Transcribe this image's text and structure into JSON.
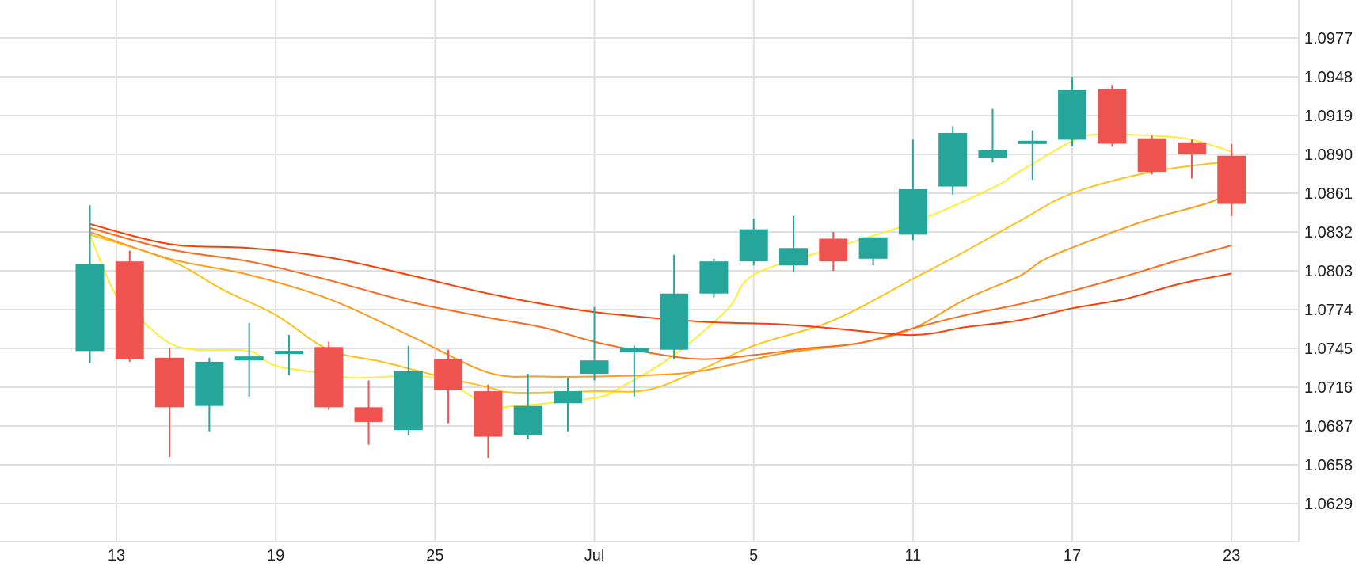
{
  "colors": {
    "up": "#26a69a",
    "down": "#ef5350",
    "grid": "#e0e0e0",
    "axis_text": "#222222",
    "ma_colors": [
      "#ffee33",
      "#ffc21a",
      "#ff9a1a",
      "#ff6a1a",
      "#ff3d00"
    ]
  },
  "chart_data": {
    "type": "candlestick",
    "grid": true,
    "ylim": [
      1.0603,
      1.1007
    ],
    "y_ticks": [
      "1.0977",
      "1.0948",
      "1.0919",
      "1.0890",
      "1.0861",
      "1.0832",
      "1.0803",
      "1.0774",
      "1.0745",
      "1.0716",
      "1.0687",
      "1.0658",
      "1.0629"
    ],
    "x_ticks": [
      {
        "label": "13",
        "day": 13
      },
      {
        "label": "19",
        "day": 19
      },
      {
        "label": "25",
        "day": 25
      },
      {
        "label": "Jul",
        "day": 31
      },
      {
        "label": "5",
        "day": 37
      },
      {
        "label": "11",
        "day": 43
      },
      {
        "label": "17",
        "day": 49
      },
      {
        "label": "23",
        "day": 55
      }
    ],
    "candles": [
      {
        "day": 12,
        "open": 1.0743,
        "high": 1.0852,
        "low": 1.0734,
        "close": 1.0808
      },
      {
        "day": 13.5,
        "open": 1.081,
        "high": 1.0818,
        "low": 1.0735,
        "close": 1.0737
      },
      {
        "day": 15,
        "open": 1.0738,
        "high": 1.0745,
        "low": 1.0664,
        "close": 1.0701
      },
      {
        "day": 16.5,
        "open": 1.0702,
        "high": 1.0738,
        "low": 1.0683,
        "close": 1.0735
      },
      {
        "day": 18,
        "open": 1.0736,
        "high": 1.0764,
        "low": 1.0709,
        "close": 1.0739
      },
      {
        "day": 19.5,
        "open": 1.0741,
        "high": 1.0755,
        "low": 1.0725,
        "close": 1.0743
      },
      {
        "day": 21,
        "open": 1.0746,
        "high": 1.075,
        "low": 1.0699,
        "close": 1.0701
      },
      {
        "day": 22.5,
        "open": 1.0701,
        "high": 1.0721,
        "low": 1.0673,
        "close": 1.069
      },
      {
        "day": 24,
        "open": 1.0684,
        "high": 1.0747,
        "low": 1.068,
        "close": 1.0728
      },
      {
        "day": 25.5,
        "open": 1.0737,
        "high": 1.0744,
        "low": 1.0689,
        "close": 1.0714
      },
      {
        "day": 27,
        "open": 1.0713,
        "high": 1.0718,
        "low": 1.0663,
        "close": 1.0679
      },
      {
        "day": 28.5,
        "open": 1.068,
        "high": 1.0726,
        "low": 1.0677,
        "close": 1.0702
      },
      {
        "day": 30,
        "open": 1.0704,
        "high": 1.0723,
        "low": 1.0683,
        "close": 1.0713
      },
      {
        "day": 31,
        "open": 1.0726,
        "high": 1.0776,
        "low": 1.0721,
        "close": 1.0736
      },
      {
        "day": 32.5,
        "open": 1.0742,
        "high": 1.0747,
        "low": 1.0709,
        "close": 1.0745
      },
      {
        "day": 34,
        "open": 1.0744,
        "high": 1.0815,
        "low": 1.0737,
        "close": 1.0786
      },
      {
        "day": 35.5,
        "open": 1.0786,
        "high": 1.0812,
        "low": 1.0783,
        "close": 1.081
      },
      {
        "day": 37,
        "open": 1.081,
        "high": 1.0842,
        "low": 1.0807,
        "close": 1.0834
      },
      {
        "day": 38.5,
        "open": 1.0807,
        "high": 1.0844,
        "low": 1.0802,
        "close": 1.082
      },
      {
        "day": 40,
        "open": 1.0827,
        "high": 1.0832,
        "low": 1.0803,
        "close": 1.081
      },
      {
        "day": 41.5,
        "open": 1.0812,
        "high": 1.0828,
        "low": 1.0807,
        "close": 1.0828
      },
      {
        "day": 43,
        "open": 1.083,
        "high": 1.0901,
        "low": 1.0826,
        "close": 1.0864
      },
      {
        "day": 44.5,
        "open": 1.0866,
        "high": 1.0911,
        "low": 1.086,
        "close": 1.0906
      },
      {
        "day": 46,
        "open": 1.0887,
        "high": 1.0924,
        "low": 1.0884,
        "close": 1.0893
      },
      {
        "day": 47.5,
        "open": 1.0898,
        "high": 1.0908,
        "low": 1.0871,
        "close": 1.09
      },
      {
        "day": 49,
        "open": 1.0901,
        "high": 1.0948,
        "low": 1.0896,
        "close": 1.0938
      },
      {
        "day": 50.5,
        "open": 1.0939,
        "high": 1.0942,
        "low": 1.0896,
        "close": 1.0898
      },
      {
        "day": 52,
        "open": 1.0902,
        "high": 1.0904,
        "low": 1.0875,
        "close": 1.0877
      },
      {
        "day": 53.5,
        "open": 1.0899,
        "high": 1.0901,
        "low": 1.0872,
        "close": 1.089
      },
      {
        "day": 55,
        "open": 1.0889,
        "high": 1.0898,
        "low": 1.0844,
        "close": 1.0853
      }
    ],
    "moving_averages": [
      {
        "day": [
          12,
          13,
          14,
          15,
          16,
          18,
          19,
          21,
          22,
          25,
          27,
          28,
          31,
          32,
          34,
          36,
          37,
          40,
          43,
          46,
          47,
          49,
          50,
          52,
          53.5,
          55
        ],
        "value": [
          1.083,
          1.0784,
          1.0765,
          1.0749,
          1.0744,
          1.0743,
          1.0732,
          1.0726,
          1.0723,
          1.0723,
          1.0702,
          1.0702,
          1.0708,
          1.0716,
          1.074,
          1.0774,
          1.08,
          1.082,
          1.0839,
          1.0865,
          1.0877,
          1.09,
          1.0905,
          1.0904,
          1.0901,
          1.0892
        ]
      },
      {
        "day": [
          12,
          15,
          17,
          19,
          21,
          23,
          25,
          27,
          28,
          31,
          33,
          35,
          37,
          40,
          43,
          45,
          47,
          49,
          52,
          55
        ],
        "value": [
          1.083,
          1.0811,
          1.0789,
          1.077,
          1.0744,
          1.0735,
          1.0725,
          1.0716,
          1.0712,
          1.0713,
          1.0714,
          1.0729,
          1.0747,
          1.0766,
          1.0797,
          1.0818,
          1.084,
          1.0861,
          1.0877,
          1.0885
        ]
      },
      {
        "day": [
          12,
          15,
          18,
          21,
          24,
          27,
          29,
          31,
          33,
          35,
          38,
          41,
          43,
          45,
          47,
          48,
          50,
          52,
          54,
          55
        ],
        "value": [
          1.0832,
          1.0812,
          1.08,
          1.0782,
          1.0755,
          1.0727,
          1.0724,
          1.0724,
          1.0725,
          1.0728,
          1.0741,
          1.0749,
          1.076,
          1.0782,
          1.0799,
          1.0812,
          1.0828,
          1.0842,
          1.0853,
          1.0861
        ]
      },
      {
        "day": [
          12,
          15,
          18,
          21,
          24,
          27,
          29,
          31,
          33,
          35,
          37,
          39,
          41,
          43,
          45,
          47,
          49,
          51,
          53,
          55
        ],
        "value": [
          1.0835,
          1.0819,
          1.081,
          1.0796,
          1.078,
          1.0768,
          1.0761,
          1.075,
          1.0742,
          1.0737,
          1.074,
          1.0745,
          1.0749,
          1.076,
          1.077,
          1.0778,
          1.0788,
          1.0799,
          1.0811,
          1.0822
        ]
      },
      {
        "day": [
          12,
          15,
          18,
          21,
          24,
          27,
          30,
          32,
          35,
          38,
          40,
          43,
          45,
          47,
          49,
          51,
          53,
          55
        ],
        "value": [
          1.0838,
          1.0823,
          1.082,
          1.0813,
          1.08,
          1.0786,
          1.0775,
          1.077,
          1.0765,
          1.0763,
          1.076,
          1.0755,
          1.0761,
          1.0766,
          1.0775,
          1.0782,
          1.0793,
          1.0801
        ]
      }
    ]
  }
}
